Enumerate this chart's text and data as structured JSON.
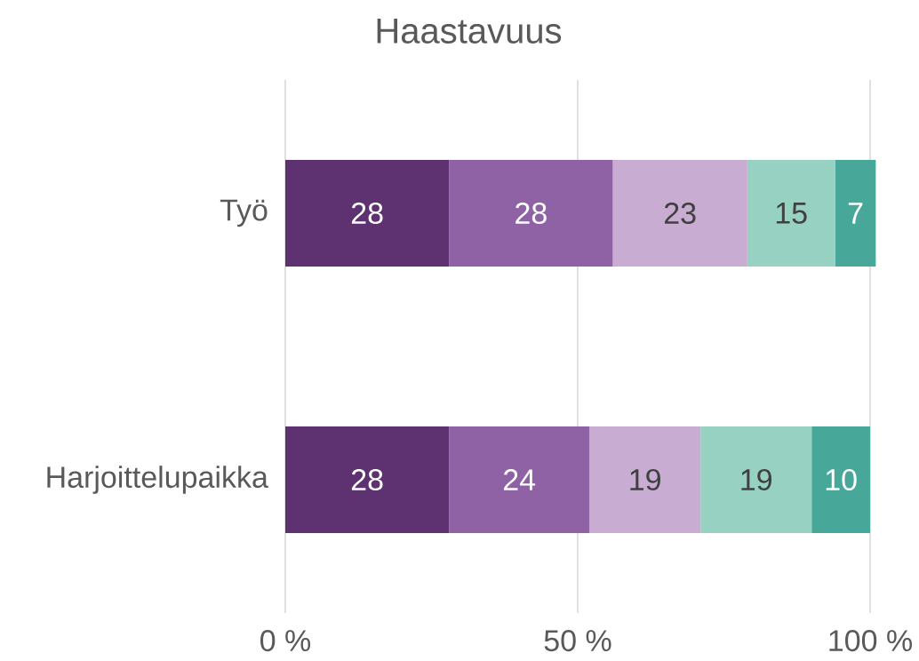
{
  "chart_data": {
    "type": "bar",
    "orientation": "horizontal",
    "stacked": true,
    "title": "Haastavuus",
    "categories": [
      "Työ",
      "Harjoittelupaikka"
    ],
    "series": [
      {
        "color": "#5e3170",
        "values": [
          28,
          28
        ]
      },
      {
        "color": "#8f62a6",
        "values": [
          28,
          24
        ]
      },
      {
        "color": "#c8acd2",
        "values": [
          23,
          19
        ]
      },
      {
        "color": "#97d1c2",
        "values": [
          15,
          19
        ]
      },
      {
        "color": "#47a89a",
        "values": [
          7,
          10
        ]
      }
    ],
    "xlim": [
      0,
      101
    ],
    "xticks": [
      {
        "value": 0,
        "label": "0 %"
      },
      {
        "value": 50,
        "label": "50 %"
      },
      {
        "value": 100,
        "label": "100 %"
      }
    ],
    "grid": "x",
    "data_labels": true
  }
}
